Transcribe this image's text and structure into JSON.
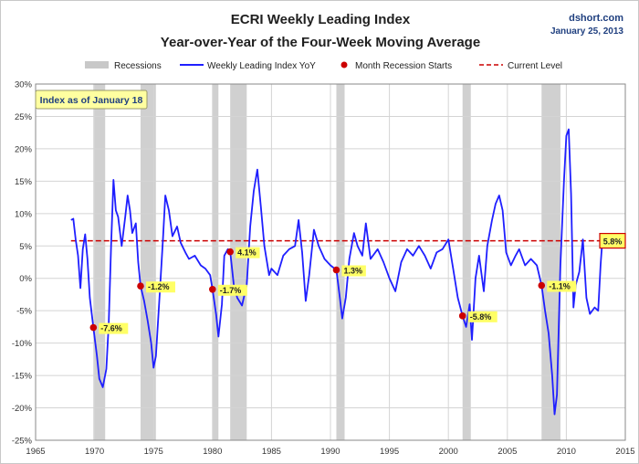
{
  "source": {
    "site": "dshort.com",
    "date": "January 25, 2013"
  },
  "chart_data": {
    "type": "line",
    "title": "ECRI Weekly Leading Index",
    "subtitle": "Year-over-Year of the Four-Week Moving Average",
    "xlim": [
      1965,
      2015
    ],
    "ylim": [
      -25,
      30
    ],
    "x_ticks": [
      "1965",
      "1970",
      "1975",
      "1980",
      "1985",
      "1990",
      "1995",
      "2000",
      "2005",
      "2010",
      "2015"
    ],
    "y_ticks": [
      "30%",
      "25%",
      "20%",
      "15%",
      "10%",
      "5%",
      "0%",
      "-5%",
      "-10%",
      "-15%",
      "-20%",
      "-25%"
    ],
    "grid": true,
    "legend": {
      "placement": "top",
      "items": [
        "Recessions",
        "Weekly Leading Index YoY",
        "Month Recession Starts",
        "Current Level"
      ]
    },
    "note_box": "Index as of January 18",
    "current_level": {
      "value": 5.8,
      "label": "5.8%"
    },
    "recessions": [
      [
        1969.9,
        1970.9
      ],
      [
        1973.9,
        1975.2
      ],
      [
        1980.0,
        1980.5
      ],
      [
        1981.5,
        1982.9
      ],
      [
        1990.5,
        1991.2
      ],
      [
        2001.2,
        2001.9
      ],
      [
        2007.9,
        2009.5
      ]
    ],
    "recession_starts": [
      {
        "x": 1969.9,
        "y": -7.6,
        "label": "-7.6%"
      },
      {
        "x": 1973.9,
        "y": -1.2,
        "label": "-1.2%"
      },
      {
        "x": 1980.0,
        "y": -1.7,
        "label": "-1.7%"
      },
      {
        "x": 1981.5,
        "y": 4.1,
        "label": "4.1%"
      },
      {
        "x": 1990.5,
        "y": 1.3,
        "label": "1.3%"
      },
      {
        "x": 2001.2,
        "y": -5.8,
        "label": "-5.8%"
      },
      {
        "x": 2007.9,
        "y": -1.1,
        "label": "-1.1%"
      }
    ],
    "series": [
      {
        "name": "Weekly Leading Index YoY",
        "color": "#1f1fff",
        "points": [
          [
            1968.0,
            9.0
          ],
          [
            1968.2,
            9.2
          ],
          [
            1968.4,
            6.0
          ],
          [
            1968.6,
            3.5
          ],
          [
            1968.8,
            -1.5
          ],
          [
            1969.0,
            4.5
          ],
          [
            1969.2,
            6.8
          ],
          [
            1969.4,
            3.0
          ],
          [
            1969.6,
            -3.0
          ],
          [
            1969.9,
            -7.6
          ],
          [
            1970.2,
            -12.0
          ],
          [
            1970.4,
            -15.5
          ],
          [
            1970.7,
            -16.8
          ],
          [
            1971.0,
            -14.0
          ],
          [
            1971.2,
            -7.0
          ],
          [
            1971.4,
            5.0
          ],
          [
            1971.6,
            15.2
          ],
          [
            1971.8,
            10.5
          ],
          [
            1972.0,
            9.5
          ],
          [
            1972.3,
            5.0
          ],
          [
            1972.6,
            9.5
          ],
          [
            1972.8,
            12.8
          ],
          [
            1973.0,
            10.5
          ],
          [
            1973.2,
            7.0
          ],
          [
            1973.5,
            8.5
          ],
          [
            1973.7,
            2.5
          ],
          [
            1973.9,
            -1.2
          ],
          [
            1974.2,
            -3.5
          ],
          [
            1974.5,
            -6.5
          ],
          [
            1974.8,
            -10.0
          ],
          [
            1975.0,
            -13.8
          ],
          [
            1975.2,
            -12.0
          ],
          [
            1975.5,
            -3.0
          ],
          [
            1975.8,
            6.0
          ],
          [
            1976.0,
            12.8
          ],
          [
            1976.3,
            10.5
          ],
          [
            1976.6,
            6.5
          ],
          [
            1977.0,
            8.0
          ],
          [
            1977.3,
            5.5
          ],
          [
            1977.7,
            4.0
          ],
          [
            1978.0,
            3.0
          ],
          [
            1978.5,
            3.5
          ],
          [
            1979.0,
            2.0
          ],
          [
            1979.4,
            1.5
          ],
          [
            1979.8,
            0.5
          ],
          [
            1980.0,
            -1.7
          ],
          [
            1980.3,
            -5.5
          ],
          [
            1980.5,
            -9.0
          ],
          [
            1980.8,
            -4.0
          ],
          [
            1981.0,
            3.5
          ],
          [
            1981.3,
            4.5
          ],
          [
            1981.5,
            4.1
          ],
          [
            1981.8,
            -1.0
          ],
          [
            1982.1,
            -3.0
          ],
          [
            1982.5,
            -4.2
          ],
          [
            1982.9,
            -1.0
          ],
          [
            1983.2,
            8.0
          ],
          [
            1983.5,
            13.5
          ],
          [
            1983.8,
            16.8
          ],
          [
            1984.1,
            11.0
          ],
          [
            1984.4,
            5.0
          ],
          [
            1984.8,
            0.5
          ],
          [
            1985.0,
            1.5
          ],
          [
            1985.5,
            0.5
          ],
          [
            1986.0,
            3.5
          ],
          [
            1986.5,
            4.5
          ],
          [
            1987.0,
            5.0
          ],
          [
            1987.3,
            9.0
          ],
          [
            1987.6,
            4.0
          ],
          [
            1987.9,
            -3.5
          ],
          [
            1988.2,
            0.5
          ],
          [
            1988.6,
            7.5
          ],
          [
            1989.0,
            5.0
          ],
          [
            1989.5,
            3.0
          ],
          [
            1990.0,
            2.0
          ],
          [
            1990.5,
            1.3
          ],
          [
            1990.8,
            -3.0
          ],
          [
            1991.0,
            -6.2
          ],
          [
            1991.3,
            -3.0
          ],
          [
            1991.6,
            3.0
          ],
          [
            1992.0,
            7.0
          ],
          [
            1992.3,
            5.0
          ],
          [
            1992.7,
            3.5
          ],
          [
            1993.0,
            8.5
          ],
          [
            1993.4,
            3.0
          ],
          [
            1994.0,
            4.5
          ],
          [
            1994.5,
            2.5
          ],
          [
            1995.0,
            0.0
          ],
          [
            1995.5,
            -2.0
          ],
          [
            1996.0,
            2.5
          ],
          [
            1996.5,
            4.5
          ],
          [
            1997.0,
            3.5
          ],
          [
            1997.5,
            5.0
          ],
          [
            1998.0,
            3.5
          ],
          [
            1998.5,
            1.5
          ],
          [
            1999.0,
            4.0
          ],
          [
            1999.5,
            4.5
          ],
          [
            2000.0,
            6.0
          ],
          [
            2000.4,
            1.5
          ],
          [
            2000.8,
            -3.0
          ],
          [
            2001.2,
            -5.8
          ],
          [
            2001.5,
            -7.5
          ],
          [
            2001.8,
            -4.0
          ],
          [
            2002.0,
            -9.5
          ],
          [
            2002.3,
            0.0
          ],
          [
            2002.6,
            3.5
          ],
          [
            2003.0,
            -2.0
          ],
          [
            2003.3,
            5.0
          ],
          [
            2003.7,
            9.0
          ],
          [
            2004.0,
            11.5
          ],
          [
            2004.3,
            12.8
          ],
          [
            2004.6,
            10.5
          ],
          [
            2004.9,
            4.0
          ],
          [
            2005.3,
            2.0
          ],
          [
            2005.7,
            3.5
          ],
          [
            2006.0,
            4.5
          ],
          [
            2006.5,
            2.0
          ],
          [
            2007.0,
            3.0
          ],
          [
            2007.5,
            2.0
          ],
          [
            2007.9,
            -1.1
          ],
          [
            2008.2,
            -5.0
          ],
          [
            2008.5,
            -8.5
          ],
          [
            2008.8,
            -15.0
          ],
          [
            2009.0,
            -21.0
          ],
          [
            2009.2,
            -18.0
          ],
          [
            2009.5,
            2.0
          ],
          [
            2009.8,
            15.0
          ],
          [
            2010.0,
            22.0
          ],
          [
            2010.2,
            23.0
          ],
          [
            2010.4,
            13.0
          ],
          [
            2010.6,
            -4.5
          ],
          [
            2010.8,
            -1.0
          ],
          [
            2011.1,
            1.0
          ],
          [
            2011.4,
            6.0
          ],
          [
            2011.7,
            -3.0
          ],
          [
            2012.0,
            -5.5
          ],
          [
            2012.4,
            -4.5
          ],
          [
            2012.7,
            -5.0
          ],
          [
            2012.9,
            2.0
          ],
          [
            2013.05,
            5.8
          ]
        ]
      }
    ]
  }
}
